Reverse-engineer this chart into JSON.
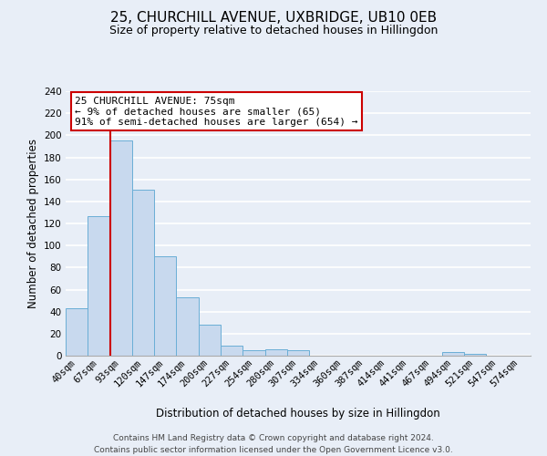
{
  "title": "25, CHURCHILL AVENUE, UXBRIDGE, UB10 0EB",
  "subtitle": "Size of property relative to detached houses in Hillingdon",
  "xlabel": "Distribution of detached houses by size in Hillingdon",
  "ylabel": "Number of detached properties",
  "bar_labels": [
    "40sqm",
    "67sqm",
    "93sqm",
    "120sqm",
    "147sqm",
    "174sqm",
    "200sqm",
    "227sqm",
    "254sqm",
    "280sqm",
    "307sqm",
    "334sqm",
    "360sqm",
    "387sqm",
    "414sqm",
    "441sqm",
    "467sqm",
    "494sqm",
    "521sqm",
    "547sqm",
    "574sqm"
  ],
  "bar_values": [
    43,
    127,
    195,
    151,
    90,
    53,
    28,
    9,
    5,
    6,
    5,
    0,
    0,
    0,
    0,
    0,
    0,
    3,
    2,
    0,
    0
  ],
  "bar_color": "#c8d9ee",
  "bar_edge_color": "#6aaed6",
  "ylim": [
    0,
    240
  ],
  "yticks": [
    0,
    20,
    40,
    60,
    80,
    100,
    120,
    140,
    160,
    180,
    200,
    220,
    240
  ],
  "annotation_title": "25 CHURCHILL AVENUE: 75sqm",
  "annotation_line1": "← 9% of detached houses are smaller (65)",
  "annotation_line2": "91% of semi-detached houses are larger (654) →",
  "vline_color": "#cc0000",
  "annotation_box_edge": "#cc0000",
  "footer1": "Contains HM Land Registry data © Crown copyright and database right 2024.",
  "footer2": "Contains public sector information licensed under the Open Government Licence v3.0.",
  "page_bg_color": "#e8eef7",
  "plot_bg_color": "#e8eef7",
  "grid_color": "#ffffff",
  "title_fontsize": 11,
  "subtitle_fontsize": 9,
  "axis_label_fontsize": 8.5,
  "tick_fontsize": 7.5,
  "footer_fontsize": 6.5,
  "annot_fontsize": 8
}
